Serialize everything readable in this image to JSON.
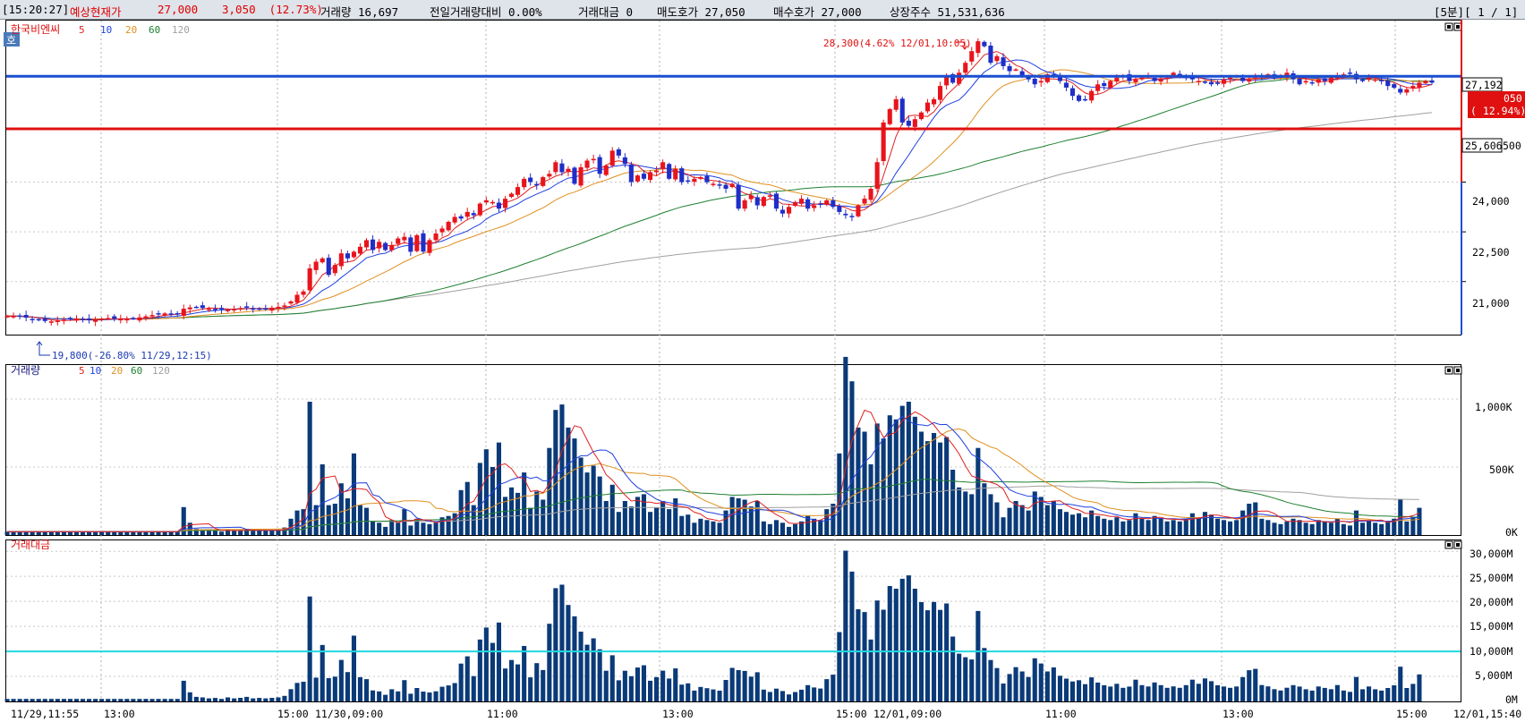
{
  "header": {
    "time": "[15:20:27]",
    "label": "예상현재가",
    "price": "27,000",
    "change": "3,050  (12.73%)",
    "volume": "거래량 16,697",
    "prev_ratio": "전일거래량대비 0.00%",
    "amount": "거래대금 0",
    "ask": "매도호가 27,050",
    "bid": "매수호가 27,000",
    "shares": "상장주수 51,531,636",
    "period": "[5분][ 1 / 1]"
  },
  "price_panel": {
    "badge": "호",
    "stock_name": "한국비엔씨",
    "ma_labels": [
      "5",
      "10",
      "20",
      "60",
      "120"
    ],
    "high_annotation": "28,300(4.62% 12/01,10:05)",
    "low_annotation": "19,800(-26.80% 11/29,12:15)",
    "current_tag": "27,192",
    "current_change": "( 12.94%)",
    "current_price_partial": "050",
    "line_tag": "25,606",
    "y_ticks": [
      "21,000",
      "22,500",
      "24,000",
      "500"
    ]
  },
  "volume_panel": {
    "title": "거래량",
    "ma_labels": [
      "5",
      "10",
      "20",
      "60",
      "120"
    ],
    "y_ticks": [
      "0K",
      "500K",
      "1,000K"
    ]
  },
  "amount_panel": {
    "title": "거래대금",
    "y_ticks": [
      "0M",
      "5,000M",
      "10,000M",
      "15,000M",
      "20,000M",
      "25,000M",
      "30,000M"
    ]
  },
  "x_axis": {
    "labels": [
      "11/29,11:55",
      "13:00",
      "15:00",
      "11/30,09:00",
      "11:00",
      "13:00",
      "15:00",
      "12/01,09:00",
      "11:00",
      "13:00",
      "15:00",
      "12/01,15:40"
    ]
  },
  "colors": {
    "up": "#e8141c",
    "down": "#1f2ec8",
    "ma5": "#e02020",
    "ma10": "#2040e0",
    "ma20": "#e09020",
    "ma60": "#208030",
    "ma120": "#a0a0a0",
    "bar": "#0a3a78",
    "h_blue": "#1a4fd0",
    "h_red": "#e01010",
    "cyan": "#20d8e0"
  },
  "chart_data": [
    {
      "type": "candlestick",
      "title": "한국비엔씨",
      "ylim": [
        19400,
        28900
      ],
      "y_ticks": [
        21000,
        22500,
        24000
      ],
      "horizontal_lines": [
        27192,
        25606
      ],
      "high": 28300,
      "low": 19800,
      "close_series": [
        19960,
        19960,
        19940,
        19910,
        19870,
        19840,
        19810,
        19800,
        19820,
        19850,
        19860,
        19880,
        19850,
        19840,
        19860,
        19880,
        19900,
        19880,
        19870,
        19870,
        19880,
        19920,
        19950,
        19990,
        20010,
        20040,
        20010,
        20020,
        20180,
        20220,
        20230,
        20200,
        20180,
        20170,
        20160,
        20150,
        20170,
        20200,
        20230,
        20190,
        20160,
        20180,
        20210,
        20240,
        20280,
        20400,
        20600,
        20700,
        21400,
        21600,
        21700,
        21200,
        21500,
        21850,
        21700,
        21900,
        22050,
        22250,
        21950,
        22200,
        21950,
        22100,
        22300,
        22350,
        21900,
        22400,
        21900,
        22250,
        22450,
        22600,
        22800,
        22950,
        22900,
        23100,
        23000,
        23350,
        23450,
        23400,
        23200,
        23500,
        23650,
        23850,
        24100,
        24000,
        23900,
        24150,
        24250,
        24600,
        24300,
        24400,
        23950,
        24450,
        24650,
        24700,
        24250,
        24500,
        24950,
        24800,
        24550,
        24000,
        24200,
        24100,
        24300,
        24350,
        24600,
        24100,
        24400,
        24000,
        24050,
        24100,
        24150,
        24000,
        23950,
        23900,
        23800,
        23950,
        23200,
        23450,
        23600,
        23300,
        23550,
        23600,
        23200,
        23050,
        23250,
        23400,
        23500,
        23200,
        23300,
        23350,
        23450,
        23250,
        23100,
        23000,
        22950,
        23300,
        23500,
        23800,
        24600,
        25800,
        26200,
        26500,
        25800,
        25700,
        25900,
        26100,
        26400,
        26500,
        26900,
        27200,
        27000,
        27300,
        27600,
        27950,
        28250,
        28100,
        27600,
        27800,
        27500,
        27350,
        27400,
        27200,
        27100,
        26950,
        27050,
        27250,
        27200,
        27050,
        26850,
        26600,
        26450,
        26500,
        26750,
        26950,
        26900,
        27050,
        27150,
        27200,
        27050,
        27100,
        27150,
        27200,
        27050,
        27100,
        27150,
        27300,
        27200,
        27150,
        27100,
        27050,
        27000,
        26950,
        27000,
        27100,
        27150,
        27200,
        27050,
        27100,
        27150,
        27200,
        27250,
        27150,
        27200,
        27300,
        27100,
        26950,
        27050,
        27000,
        27100,
        27050,
        27150,
        27200,
        27250,
        27300,
        27100,
        27050,
        27150,
        27100,
        27050,
        26900,
        26850,
        26700,
        26800,
        26900,
        27000,
        27050,
        27000
      ],
      "volume_series": [
        25,
        25,
        25,
        25,
        25,
        25,
        25,
        25,
        25,
        25,
        25,
        25,
        25,
        25,
        25,
        25,
        25,
        25,
        25,
        25,
        25,
        25,
        25,
        25,
        25,
        25,
        25,
        25,
        205,
        90,
        45,
        40,
        30,
        35,
        25,
        40,
        30,
        35,
        45,
        30,
        35,
        30,
        35,
        40,
        55,
        120,
        180,
        190,
        980,
        220,
        520,
        220,
        230,
        380,
        270,
        600,
        220,
        200,
        100,
        90,
        60,
        110,
        90,
        190,
        70,
        120,
        90,
        80,
        90,
        130,
        140,
        160,
        330,
        390,
        220,
        530,
        630,
        500,
        680,
        280,
        350,
        310,
        460,
        200,
        320,
        260,
        640,
        920,
        960,
        790,
        710,
        570,
        460,
        510,
        430,
        250,
        370,
        170,
        250,
        210,
        280,
        300,
        170,
        200,
        250,
        190,
        270,
        140,
        150,
        90,
        120,
        110,
        100,
        90,
        180,
        280,
        270,
        260,
        210,
        250,
        100,
        80,
        110,
        90,
        60,
        80,
        100,
        140,
        120,
        110,
        190,
        230,
        600,
        1310,
        1130,
        790,
        760,
        520,
        820,
        710,
        880,
        850,
        950,
        980,
        870,
        760,
        690,
        750,
        680,
        720,
        480,
        350,
        320,
        300,
        640,
        380,
        300,
        240,
        130,
        200,
        250,
        220,
        180,
        320,
        280,
        220,
        250,
        190,
        170,
        150,
        160,
        130,
        180,
        140,
        120,
        110,
        130,
        100,
        110,
        160,
        120,
        110,
        140,
        120,
        100,
        110,
        100,
        120,
        160,
        130,
        170,
        150,
        120,
        110,
        100,
        110,
        180,
        230,
        240,
        120,
        110,
        90,
        80,
        100,
        120,
        110,
        90,
        80,
        110,
        100,
        90,
        120,
        80,
        70,
        180,
        90,
        110,
        90,
        80,
        100,
        120,
        260,
        100,
        130,
        200
      ]
    }
  ]
}
